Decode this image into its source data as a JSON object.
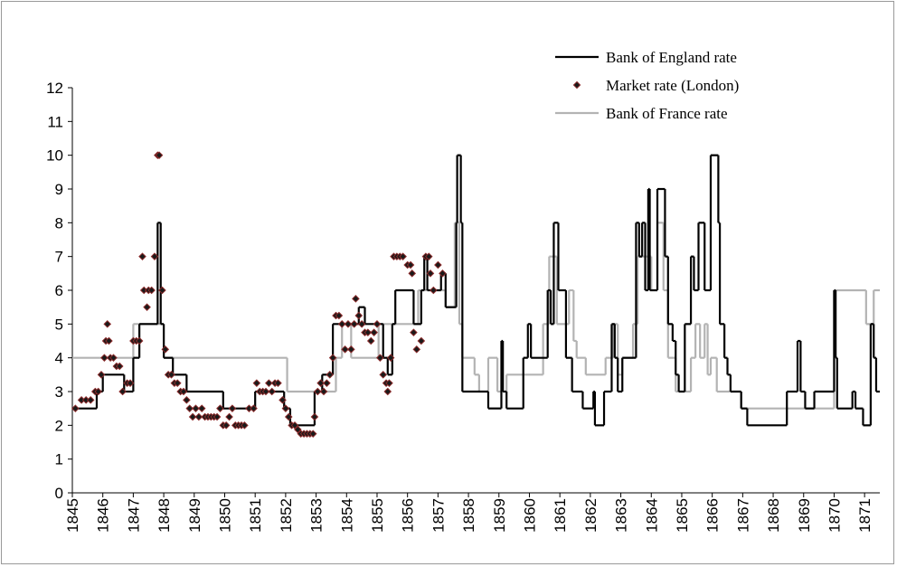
{
  "chart_data": {
    "type": "line",
    "xlim": [
      1845,
      1871.5
    ],
    "xticks": [
      1845,
      1846,
      1847,
      1848,
      1849,
      1850,
      1851,
      1852,
      1853,
      1854,
      1855,
      1856,
      1857,
      1858,
      1859,
      1860,
      1861,
      1862,
      1863,
      1864,
      1865,
      1866,
      1867,
      1868,
      1869,
      1870,
      1871
    ],
    "ylim": [
      0,
      12
    ],
    "yticks": [
      0,
      1,
      2,
      3,
      4,
      5,
      6,
      7,
      8,
      9,
      10,
      11,
      12
    ],
    "legend": "top-right",
    "series": [
      {
        "name": "Bank of England rate",
        "color": "#000000",
        "kind": "step",
        "x": [
          1845,
          1845.8,
          1846.0,
          1846.7,
          1847.0,
          1847.2,
          1847.8,
          1847.9,
          1848.0,
          1848.3,
          1848.75,
          1849.95,
          1851.0,
          1851.95,
          1852.15,
          1852.95,
          1853.2,
          1853.55,
          1854.4,
          1854.6,
          1855.2,
          1855.35,
          1855.5,
          1855.6,
          1856.2,
          1856.45,
          1856.55,
          1856.65,
          1857.1,
          1857.25,
          1857.6,
          1857.63,
          1857.75,
          1857.8,
          1858.65,
          1859.08,
          1859.13,
          1859.25,
          1859.8,
          1859.95,
          1860.05,
          1860.6,
          1860.7,
          1860.8,
          1860.95,
          1861.2,
          1861.4,
          1861.75,
          1862.1,
          1862.15,
          1862.45,
          1862.7,
          1862.8,
          1862.9,
          1863.05,
          1863.5,
          1863.6,
          1863.7,
          1863.8,
          1863.9,
          1863.95,
          1864.2,
          1864.45,
          1864.55,
          1864.7,
          1864.8,
          1864.9,
          1865.1,
          1865.3,
          1865.4,
          1865.55,
          1865.75,
          1865.95,
          1866.2,
          1866.25,
          1866.4,
          1866.5,
          1866.6,
          1866.95,
          1867.15,
          1868.45,
          1868.8,
          1868.9,
          1869.05,
          1869.35,
          1870.0,
          1870.05,
          1870.1,
          1870.6,
          1870.7,
          1870.95,
          1871.2,
          1871.3,
          1871.38
        ],
        "values": [
          2.5,
          3,
          3.5,
          3,
          4,
          5,
          8,
          5,
          4,
          3.5,
          3,
          2.5,
          3,
          2.5,
          2,
          3,
          3.5,
          5,
          5.5,
          5,
          4,
          3.5,
          5,
          6,
          5,
          6,
          7,
          6,
          6.5,
          5.5,
          8,
          10,
          8,
          3,
          2.5,
          4.5,
          3,
          2.5,
          4,
          5,
          4,
          6,
          5,
          8,
          6,
          4,
          3,
          2.5,
          3,
          2,
          3,
          5,
          4,
          3,
          4,
          8,
          7,
          8,
          6,
          9,
          6,
          9,
          7,
          5,
          4.5,
          3.5,
          3,
          5,
          7,
          6,
          8,
          6,
          10,
          8,
          5,
          4,
          3.5,
          3,
          2.5,
          2,
          3,
          4.5,
          3,
          2.5,
          3,
          6,
          4,
          2.5,
          3,
          2.5,
          2,
          5,
          4,
          3
        ]
      },
      {
        "name": "Market rate (London)",
        "color": "#1a1a1a",
        "kind": "markers",
        "x": [
          1845.1,
          1845.3,
          1845.45,
          1845.6,
          1845.75,
          1845.85,
          1845.95,
          1846.05,
          1846.1,
          1846.15,
          1846.2,
          1846.25,
          1846.35,
          1846.45,
          1846.55,
          1846.65,
          1846.8,
          1846.9,
          1847.0,
          1847.1,
          1847.2,
          1847.3,
          1847.35,
          1847.45,
          1847.5,
          1847.6,
          1847.7,
          1847.8,
          1847.85,
          1847.95,
          1848.05,
          1848.15,
          1848.25,
          1848.35,
          1848.45,
          1848.55,
          1848.65,
          1848.75,
          1848.85,
          1848.95,
          1849.05,
          1849.15,
          1849.25,
          1849.35,
          1849.45,
          1849.55,
          1849.65,
          1849.75,
          1849.85,
          1849.95,
          1850.05,
          1850.15,
          1850.25,
          1850.35,
          1850.45,
          1850.55,
          1850.65,
          1850.8,
          1850.95,
          1851.05,
          1851.15,
          1851.25,
          1851.35,
          1851.45,
          1851.55,
          1851.65,
          1851.75,
          1851.9,
          1852.0,
          1852.1,
          1852.2,
          1852.3,
          1852.4,
          1852.5,
          1852.6,
          1852.7,
          1852.8,
          1852.9,
          1852.95,
          1853.05,
          1853.15,
          1853.25,
          1853.35,
          1853.45,
          1853.55,
          1853.65,
          1853.75,
          1853.85,
          1853.95,
          1854.05,
          1854.15,
          1854.25,
          1854.3,
          1854.4,
          1854.5,
          1854.6,
          1854.7,
          1854.8,
          1854.9,
          1855.0,
          1855.1,
          1855.2,
          1855.3,
          1855.35,
          1855.4,
          1855.45,
          1855.55,
          1855.65,
          1855.75,
          1855.85,
          1856.0,
          1856.1,
          1856.15,
          1856.2,
          1856.3,
          1856.45,
          1856.6,
          1856.7,
          1856.75,
          1856.85,
          1857.0,
          1857.15
        ],
        "values": [
          2.5,
          2.75,
          2.75,
          2.75,
          3,
          3,
          3.5,
          4,
          4.5,
          5,
          4.5,
          4,
          4,
          3.75,
          3.75,
          3,
          3.25,
          3.25,
          4.5,
          4.5,
          4.5,
          7,
          6,
          5.5,
          6,
          6,
          7,
          10,
          10,
          6,
          4.25,
          3.5,
          3.5,
          3.25,
          3.25,
          3,
          3,
          2.75,
          2.5,
          2.25,
          2.5,
          2.25,
          2.5,
          2.25,
          2.25,
          2.25,
          2.25,
          2.25,
          2.5,
          2,
          2,
          2.25,
          2.5,
          2,
          2,
          2,
          2,
          2.5,
          2.5,
          3.25,
          3,
          3,
          3,
          3.25,
          3,
          3.25,
          3.25,
          2.75,
          2.5,
          2.25,
          2,
          2,
          1.875,
          1.75,
          1.75,
          1.75,
          1.75,
          1.75,
          2.25,
          3,
          3.25,
          3,
          3.25,
          3.5,
          4,
          5.25,
          5.25,
          5,
          4.25,
          5,
          4.25,
          5,
          5.75,
          5.25,
          5,
          4.75,
          4.75,
          4.5,
          4.75,
          5,
          4,
          3.5,
          3.25,
          3,
          3.25,
          4,
          7,
          7,
          7,
          7,
          6.75,
          6.75,
          6.5,
          4.75,
          4.25,
          4.5,
          7,
          7,
          6.5,
          6,
          6.75,
          6.5
        ]
      },
      {
        "name": "Bank of France rate",
        "color": "#b3b3b3",
        "kind": "step",
        "x": [
          1845,
          1847.0,
          1848.0,
          1852.05,
          1853.65,
          1853.85,
          1854.15,
          1855.05,
          1856.35,
          1857.25,
          1857.55,
          1857.7,
          1857.8,
          1858.2,
          1858.35,
          1858.65,
          1858.95,
          1859.25,
          1860.45,
          1860.65,
          1860.9,
          1861.3,
          1861.45,
          1861.55,
          1861.85,
          1862.5,
          1862.75,
          1862.9,
          1863.05,
          1863.4,
          1863.55,
          1864.0,
          1864.2,
          1864.4,
          1864.55,
          1864.8,
          1865.3,
          1865.45,
          1865.6,
          1865.75,
          1865.85,
          1865.95,
          1866.15,
          1866.95,
          1870.0,
          1871.05,
          1871.3
        ],
        "values": [
          4,
          5,
          4,
          3,
          4,
          5,
          4,
          5,
          6,
          5.5,
          8,
          5,
          4,
          3.5,
          3,
          4,
          3,
          3.5,
          5,
          7,
          5,
          6,
          4.5,
          4,
          3.5,
          4,
          5,
          3.5,
          4,
          5,
          7,
          6,
          8,
          6,
          4,
          3,
          4,
          5,
          4,
          5,
          3.5,
          4,
          3,
          2.5,
          6,
          5,
          6
        ]
      }
    ]
  }
}
